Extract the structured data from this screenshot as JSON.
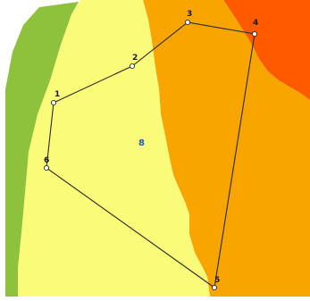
{
  "map": {
    "zone_colors": {
      "green": "#8ec13c",
      "light_yellow": "#fbfb7a",
      "pale_yellow": "#f3f094",
      "orange": "#f8a500",
      "red_orange": "#ff5a00",
      "boundary_line": "#2a2a2a",
      "zone_label_color": "#1f5fa8"
    },
    "zone_label": "8",
    "vertices": [
      {
        "label": "1"
      },
      {
        "label": "2"
      },
      {
        "label": "3"
      },
      {
        "label": "4"
      },
      {
        "label": "5"
      },
      {
        "label": "6"
      }
    ]
  }
}
